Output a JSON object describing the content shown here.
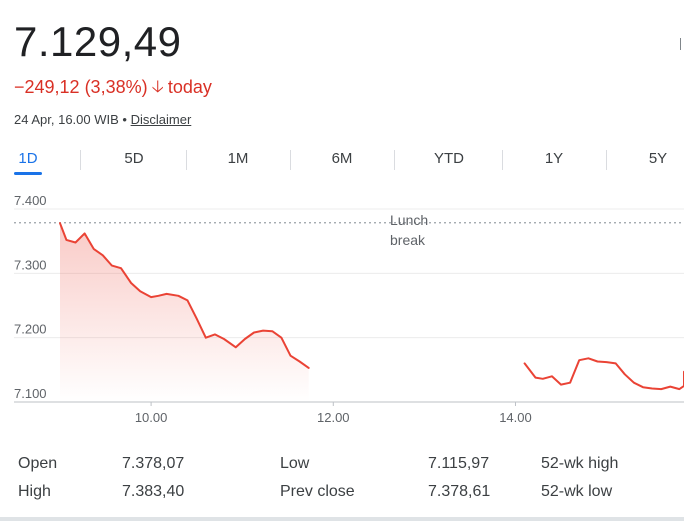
{
  "quote": {
    "price": "7.129,49",
    "change": "−249,12 (3,38%)",
    "change_suffix": "today",
    "timestamp": "24 Apr, 16.00 WIB",
    "separator": "•",
    "disclaimer": "Disclaimer",
    "change_color": "#d93025"
  },
  "tabs": [
    {
      "label": "1D",
      "active": true
    },
    {
      "label": "5D",
      "active": false
    },
    {
      "label": "1M",
      "active": false
    },
    {
      "label": "6M",
      "active": false
    },
    {
      "label": "YTD",
      "active": false
    },
    {
      "label": "1Y",
      "active": false
    },
    {
      "label": "5Y",
      "active": false
    }
  ],
  "chart_data": {
    "type": "line",
    "annotation": [
      "Lunch",
      "break"
    ],
    "reference_line": 7378.61,
    "y_ticks": [
      7400,
      7300,
      7200,
      7100
    ],
    "y_tick_labels": [
      "7.400",
      "7.300",
      "7.200",
      "7.100"
    ],
    "x_ticks": [
      10,
      12,
      14
    ],
    "x_tick_labels": [
      "10.00",
      "12.00",
      "14.00"
    ],
    "ylim": [
      7100,
      7400
    ],
    "xlim": [
      9.0,
      15.85
    ],
    "line_color": "#ea4335",
    "grid": true,
    "series": [
      {
        "segment": "morning",
        "points": [
          [
            9.0,
            7378
          ],
          [
            9.07,
            7352
          ],
          [
            9.17,
            7348
          ],
          [
            9.27,
            7362
          ],
          [
            9.37,
            7338
          ],
          [
            9.47,
            7328
          ],
          [
            9.57,
            7312
          ],
          [
            9.67,
            7308
          ],
          [
            9.78,
            7285
          ],
          [
            9.88,
            7272
          ],
          [
            10.0,
            7263
          ],
          [
            10.08,
            7265
          ],
          [
            10.17,
            7268
          ],
          [
            10.3,
            7265
          ],
          [
            10.4,
            7258
          ],
          [
            10.5,
            7230
          ],
          [
            10.6,
            7200
          ],
          [
            10.7,
            7205
          ],
          [
            10.8,
            7198
          ],
          [
            10.93,
            7185
          ],
          [
            11.03,
            7198
          ],
          [
            11.13,
            7208
          ],
          [
            11.23,
            7211
          ],
          [
            11.33,
            7210
          ],
          [
            11.43,
            7200
          ],
          [
            11.53,
            7172
          ],
          [
            11.63,
            7163
          ],
          [
            11.73,
            7153
          ]
        ]
      },
      {
        "segment": "afternoon",
        "points": [
          [
            14.1,
            7160
          ],
          [
            14.22,
            7138
          ],
          [
            14.3,
            7136
          ],
          [
            14.4,
            7140
          ],
          [
            14.5,
            7127
          ],
          [
            14.6,
            7130
          ],
          [
            14.7,
            7165
          ],
          [
            14.8,
            7168
          ],
          [
            14.9,
            7163
          ],
          [
            15.0,
            7162
          ],
          [
            15.1,
            7160
          ],
          [
            15.2,
            7143
          ],
          [
            15.3,
            7130
          ],
          [
            15.4,
            7123
          ],
          [
            15.5,
            7121
          ],
          [
            15.6,
            7120
          ],
          [
            15.7,
            7124
          ],
          [
            15.8,
            7120
          ],
          [
            15.9,
            7125
          ],
          [
            16.0,
            7132
          ],
          [
            16.05,
            7147
          ]
        ]
      }
    ]
  },
  "stats": [
    {
      "label": "Open",
      "value": "7.378,07"
    },
    {
      "label": "High",
      "value": "7.383,40"
    },
    {
      "label": "Low",
      "value": "7.115,97"
    },
    {
      "label": "Prev close",
      "value": "7.378,61"
    },
    {
      "label": "52-wk high",
      "value": ""
    },
    {
      "label": "52-wk low",
      "value": ""
    }
  ]
}
